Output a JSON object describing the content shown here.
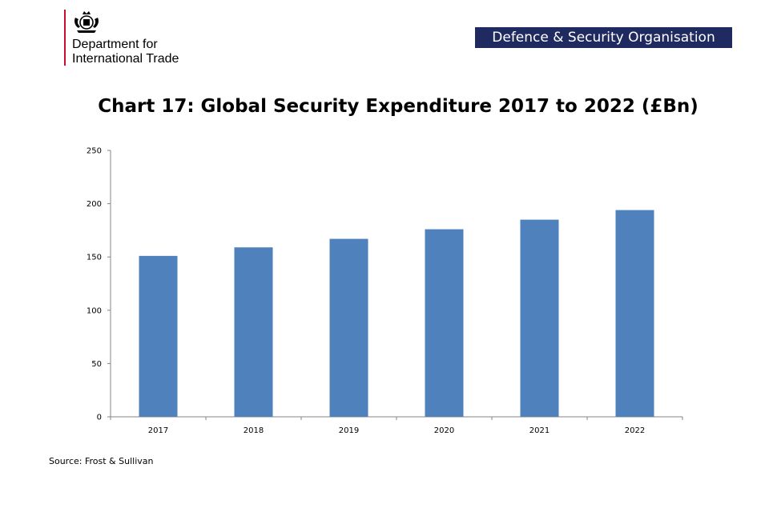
{
  "header": {
    "department_line1": "Department for",
    "department_line2": "International Trade",
    "badge": "Defence & Security Organisation"
  },
  "source": "Source: Frost & Sullivan",
  "colors": {
    "bar": "#4f81bd",
    "badge_bg": "#1f2a60",
    "accent_red": "#c8102e"
  },
  "chart_data": {
    "type": "bar",
    "title": "Chart 17: Global Security Expenditure 2017 to 2022 (£Bn)",
    "categories": [
      "2017",
      "2018",
      "2019",
      "2020",
      "2021",
      "2022"
    ],
    "values": [
      151,
      159,
      167,
      176,
      185,
      194
    ],
    "xlabel": "",
    "ylabel": "",
    "ylim": [
      0,
      250
    ],
    "yticks": [
      0,
      50,
      100,
      150,
      200,
      250
    ],
    "grid": false,
    "legend": "none"
  }
}
